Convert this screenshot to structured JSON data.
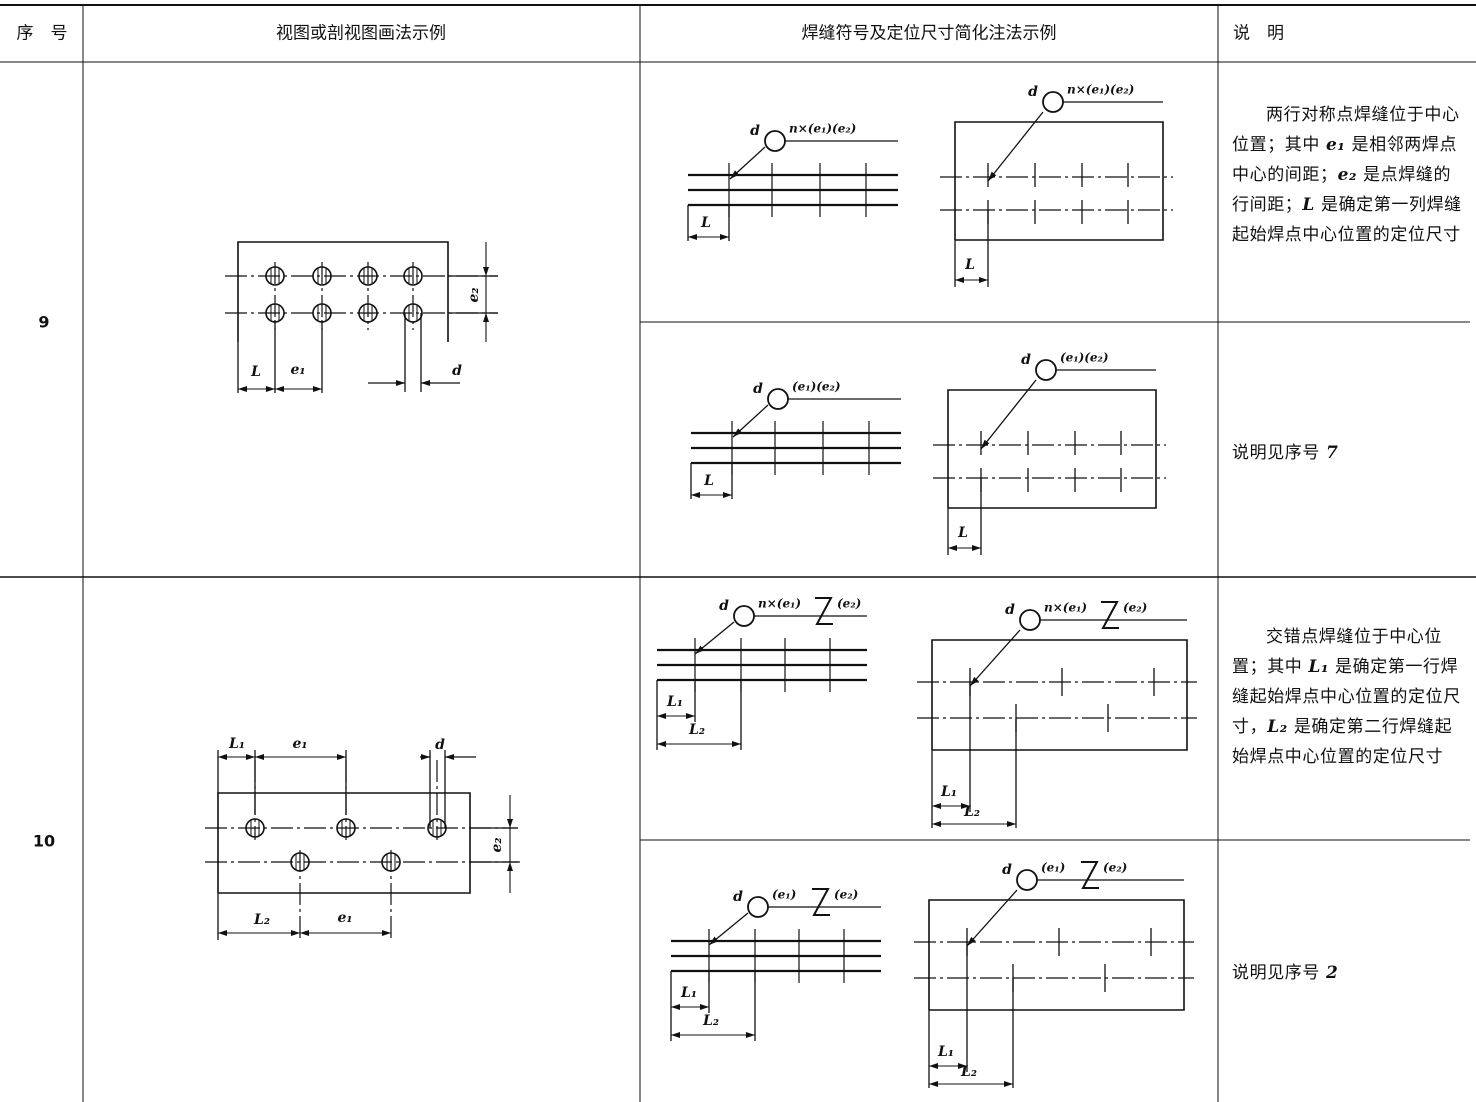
{
  "table": {
    "header": [
      "序　号",
      "视图或剖视图画法示例",
      "焊缝符号及定位尺寸简化注法示例",
      "说　明"
    ],
    "rows": [
      {
        "number": "9",
        "view_labels": [
          "L",
          "e₁",
          "d",
          "e₂"
        ],
        "examples": [
          {
            "strip_labels": [
              "d",
              "n×(e₁)(e₂)",
              "L"
            ],
            "plate_labels": [
              "d",
              "n×(e₁)(e₂)",
              "L"
            ],
            "description": [
              "两行对称点焊缝位于中心位置；其中 ",
              "e₁",
              " 是相邻两焊点中心的间距；",
              "e₂",
              " 是点焊缝的行间距；",
              "L",
              " 是确定第一列焊缝起始焊点中心位置的定位尺寸"
            ]
          },
          {
            "strip_labels": [
              "d",
              "(e₁)(e₂)",
              "L"
            ],
            "plate_labels": [
              "d",
              "(e₁)(e₂)",
              "L"
            ],
            "description": [
              "说明见序号 ",
              "7"
            ]
          }
        ]
      },
      {
        "number": "10",
        "view_labels": [
          "L₁",
          "e₁",
          "d",
          "e₂",
          "L₂",
          "e₁"
        ],
        "examples": [
          {
            "strip_labels": [
              "d",
              "n×(e₁)",
              "(e₂)",
              "L₁",
              "L₂"
            ],
            "plate_labels": [
              "d",
              "n×(e₁)",
              "(e₂)",
              "L₁",
              "L₂"
            ],
            "description": [
              "交错点焊缝位于中心位置；其中 ",
              "L₁",
              " 是确定第一行焊缝起始焊点中心位置的定位尺寸，",
              "L₂",
              " 是确定第二行焊缝起始焊点中心位置的定位尺寸"
            ]
          },
          {
            "strip_labels": [
              "d",
              "(e₁)",
              "(e₂)",
              "L₁",
              "L₂"
            ],
            "plate_labels": [
              "d",
              "(e₁)",
              "(e₂)",
              "L₁",
              "L₂"
            ],
            "description": [
              "说明见序号 ",
              "2"
            ]
          }
        ]
      }
    ]
  }
}
